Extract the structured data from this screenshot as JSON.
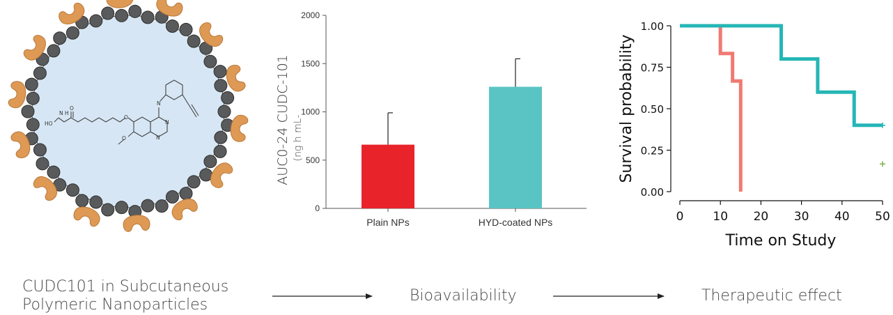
{
  "captions": {
    "step1_line1": "CUDC101 in Subcutaneous",
    "step1_line2": "Polymeric Nanoparticles",
    "step2": "Bioavailability",
    "step3": "Therapeutic effect"
  },
  "molecule_labels": {
    "nh": "N\nH",
    "ho": "HO",
    "o_carbonyl": "O",
    "o_ether": "O",
    "o_methoxy": "O",
    "n_amine": "N",
    "n_ring1": "N",
    "n_ring2": "N",
    "h_amine": "H"
  },
  "colors": {
    "np_core": "#d6e6f4",
    "np_bead": "#595a5b",
    "np_coat": "#de9a55",
    "bar_plain": "#e8232a",
    "bar_hyd": "#5ac4c4",
    "km_red": "#ef7a72",
    "km_teal": "#26b6b6",
    "km_censor_green": "#7fb24c",
    "arrow": "#222222"
  },
  "chart_data": [
    {
      "type": "bar",
      "categories": [
        "Plain NPs",
        "HYD-coated NPs"
      ],
      "values": [
        660,
        1260
      ],
      "errors": [
        330,
        290
      ],
      "ylim": [
        0,
        2000
      ],
      "yticks": [
        0,
        500,
        1000,
        1500,
        2000
      ],
      "ylabel": "AUC0-24 CUDC-101",
      "ylabel_units": "(ng h mL-",
      "xlabel": "",
      "title": "",
      "grid": false
    },
    {
      "type": "line",
      "step": true,
      "xlabel": "Time on Study",
      "ylabel": "Survival probability",
      "xlim": [
        0,
        50
      ],
      "ylim": [
        0,
        1
      ],
      "xticks": [
        0,
        10,
        20,
        30,
        40,
        50
      ],
      "yticks": [
        "0.00",
        "0.25",
        "0.50",
        "0.75",
        "1.00"
      ],
      "grid": false,
      "series": [
        {
          "color": "#ef7a72",
          "x": [
            0,
            10,
            13,
            15
          ],
          "y": [
            1.0,
            0.833,
            0.667,
            0.0
          ]
        },
        {
          "color": "#26b6b6",
          "x": [
            0,
            25,
            34,
            43,
            50
          ],
          "y": [
            1.0,
            0.8,
            0.6,
            0.4,
            0.4
          ]
        }
      ],
      "censor_marks": [
        {
          "x": 50,
          "y": 0.4,
          "color": "#26b6b6"
        },
        {
          "x": 50,
          "y": 0.167,
          "color": "#7fb24c"
        }
      ]
    }
  ]
}
